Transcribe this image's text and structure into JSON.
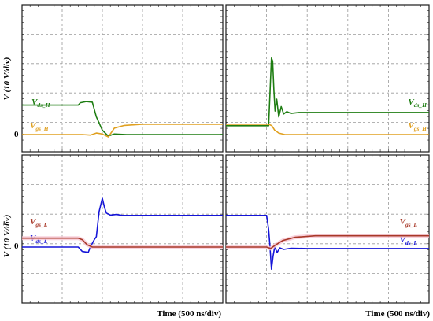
{
  "chart_data": [
    {
      "type": "line",
      "panel": "top-left",
      "ylabel": "V (10 V/div)",
      "zero_label": "0",
      "x_divisions": 5,
      "y_divisions": 5,
      "grid": true,
      "series": [
        {
          "name": "Vds_H",
          "label_main": "V",
          "label_sub": "ds_H",
          "color": "#1e7d12",
          "points": [
            [
              0,
              1.0
            ],
            [
              1.4,
              1.0
            ],
            [
              1.45,
              1.08
            ],
            [
              1.6,
              1.12
            ],
            [
              1.75,
              1.1
            ],
            [
              1.85,
              0.6
            ],
            [
              2.0,
              0.15
            ],
            [
              2.15,
              -0.05
            ],
            [
              2.3,
              0.02
            ],
            [
              2.6,
              0.0
            ],
            [
              5.0,
              0.0
            ]
          ]
        },
        {
          "name": "Vgs_H",
          "label_main": "V",
          "label_sub": "gs_H",
          "color": "#e0a020",
          "points": [
            [
              0,
              0.0
            ],
            [
              1.5,
              0.0
            ],
            [
              1.7,
              -0.02
            ],
            [
              1.85,
              0.05
            ],
            [
              2.0,
              0.02
            ],
            [
              2.15,
              -0.08
            ],
            [
              2.3,
              0.22
            ],
            [
              2.55,
              0.31
            ],
            [
              3.0,
              0.35
            ],
            [
              5.0,
              0.35
            ]
          ]
        }
      ]
    },
    {
      "type": "line",
      "panel": "top-right",
      "x_divisions": 5,
      "y_divisions": 5,
      "grid": true,
      "series": [
        {
          "name": "Vds_H",
          "label_main": "V",
          "label_sub": "ds_H",
          "color": "#1e7d12",
          "points": [
            [
              0,
              0.3
            ],
            [
              1.05,
              0.3
            ],
            [
              1.12,
              2.6
            ],
            [
              1.15,
              2.5
            ],
            [
              1.18,
              1.5
            ],
            [
              1.21,
              0.8
            ],
            [
              1.25,
              1.2
            ],
            [
              1.3,
              0.6
            ],
            [
              1.36,
              0.95
            ],
            [
              1.42,
              0.7
            ],
            [
              1.5,
              0.78
            ],
            [
              1.6,
              0.72
            ],
            [
              1.8,
              0.75
            ],
            [
              5.0,
              0.75
            ]
          ]
        },
        {
          "name": "Vgs_H",
          "label_main": "V",
          "label_sub": "gs_H",
          "color": "#e0a020",
          "points": [
            [
              0,
              0.35
            ],
            [
              1.05,
              0.35
            ],
            [
              1.13,
              0.3
            ],
            [
              1.2,
              0.15
            ],
            [
              1.3,
              0.05
            ],
            [
              1.45,
              0.0
            ],
            [
              5.0,
              0.0
            ]
          ]
        }
      ]
    },
    {
      "type": "line",
      "panel": "bottom-left",
      "ylabel": "V (10 V/div)",
      "zero_label": "0",
      "xlabel": "Time (500 ns/div)",
      "x_divisions": 5,
      "y_divisions": 5,
      "grid": true,
      "series": [
        {
          "name": "Vds_L",
          "label_main": "V",
          "label_sub": "ds_L",
          "color": "#1515d8",
          "points": [
            [
              0,
              0.0
            ],
            [
              1.4,
              0.0
            ],
            [
              1.5,
              -0.15
            ],
            [
              1.65,
              -0.18
            ],
            [
              1.7,
              0.0
            ],
            [
              1.8,
              0.25
            ],
            [
              1.85,
              0.35
            ],
            [
              1.92,
              1.2
            ],
            [
              2.0,
              1.65
            ],
            [
              2.05,
              1.35
            ],
            [
              2.1,
              1.15
            ],
            [
              2.2,
              1.08
            ],
            [
              2.35,
              1.1
            ],
            [
              2.5,
              1.07
            ],
            [
              3.0,
              1.07
            ],
            [
              5.0,
              1.07
            ]
          ]
        },
        {
          "name": "Vgs_L",
          "label_main": "V",
          "label_sub": "gs_L",
          "color": "#a83828",
          "points": [
            [
              0,
              0.3
            ],
            [
              1.4,
              0.3
            ],
            [
              1.5,
              0.25
            ],
            [
              1.62,
              0.08
            ],
            [
              1.75,
              0.0
            ],
            [
              5.0,
              0.0
            ]
          ]
        }
      ]
    },
    {
      "type": "line",
      "panel": "bottom-right",
      "xlabel": "Time (500 ns/div)",
      "x_divisions": 5,
      "y_divisions": 5,
      "grid": true,
      "series": [
        {
          "name": "Vds_L",
          "label_main": "V",
          "label_sub": "ds_L",
          "color": "#1515d8",
          "points": [
            [
              0,
              1.07
            ],
            [
              1.0,
              1.07
            ],
            [
              1.05,
              0.6
            ],
            [
              1.08,
              0.1
            ],
            [
              1.12,
              -0.75
            ],
            [
              1.16,
              -0.3
            ],
            [
              1.2,
              0.0
            ],
            [
              1.26,
              -0.18
            ],
            [
              1.33,
              -0.03
            ],
            [
              1.42,
              -0.08
            ],
            [
              1.6,
              -0.04
            ],
            [
              2.0,
              -0.05
            ],
            [
              5.0,
              -0.05
            ]
          ]
        },
        {
          "name": "Vgs_L",
          "label_main": "V",
          "label_sub": "gs_L",
          "color": "#a83828",
          "points": [
            [
              0,
              0.0
            ],
            [
              1.0,
              0.0
            ],
            [
              1.1,
              -0.05
            ],
            [
              1.2,
              0.05
            ],
            [
              1.4,
              0.22
            ],
            [
              1.7,
              0.33
            ],
            [
              2.2,
              0.38
            ],
            [
              5.0,
              0.38
            ]
          ]
        }
      ]
    }
  ],
  "colors": {
    "grid": "#9a9a9a",
    "frame": "#1a1a1a",
    "vgs_l_halo": "#f7c7d4"
  }
}
